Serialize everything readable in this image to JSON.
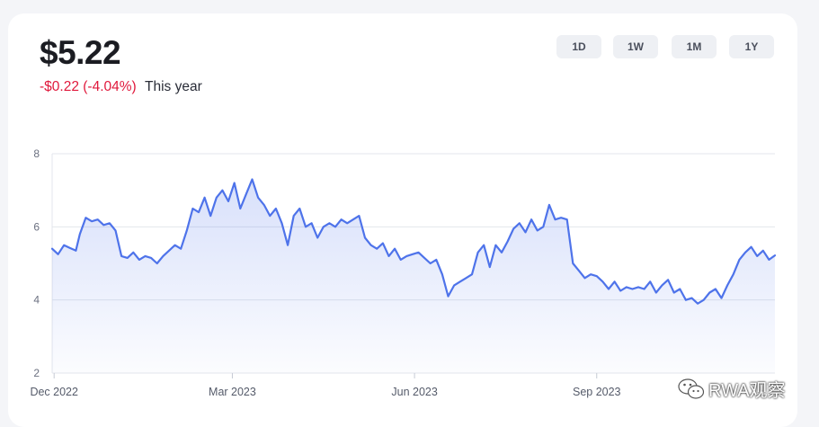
{
  "header": {
    "price": "$5.22",
    "change_amount": "-$0.22",
    "change_percent": "(-4.04%)",
    "period_label": "This year"
  },
  "range_tabs": [
    {
      "label": "1D",
      "active": false
    },
    {
      "label": "1W",
      "active": false
    },
    {
      "label": "1M",
      "active": false
    },
    {
      "label": "1Y",
      "active": true
    }
  ],
  "colors": {
    "line": "#4e73ea",
    "negative": "#e0193c",
    "active_tab": "#4e73ea",
    "grid": "#e3e6ec"
  },
  "watermark": {
    "text": "RWA观察",
    "icon": "wechat-icon"
  },
  "chart_data": {
    "type": "area",
    "title": "",
    "xlabel": "",
    "ylabel": "",
    "ylim": [
      2,
      8
    ],
    "y_ticks": [
      2,
      4,
      6,
      8
    ],
    "x_ticks": [
      "Dec 2022",
      "Mar 2023",
      "Jun 2023",
      "Sep 2023"
    ],
    "x_tick_dates": [
      "2022-12-01",
      "2023-03-01",
      "2023-06-01",
      "2023-09-01"
    ],
    "xlim": [
      "2022-11-30",
      "2023-11-30"
    ],
    "grid": true,
    "series": [
      {
        "x": [
          "2022-11-30",
          "2022-12-03",
          "2022-12-06",
          "2022-12-09",
          "2022-12-12",
          "2022-12-14",
          "2022-12-17",
          "2022-12-20",
          "2022-12-23",
          "2022-12-26",
          "2022-12-29",
          "2023-01-01",
          "2023-01-04",
          "2023-01-07",
          "2023-01-10",
          "2023-01-13",
          "2023-01-16",
          "2023-01-19",
          "2023-01-22",
          "2023-01-25",
          "2023-01-28",
          "2023-01-31",
          "2023-02-03",
          "2023-02-06",
          "2023-02-09",
          "2023-02-12",
          "2023-02-15",
          "2023-02-18",
          "2023-02-21",
          "2023-02-24",
          "2023-02-27",
          "2023-03-02",
          "2023-03-05",
          "2023-03-08",
          "2023-03-11",
          "2023-03-14",
          "2023-03-17",
          "2023-03-20",
          "2023-03-23",
          "2023-03-26",
          "2023-03-29",
          "2023-04-01",
          "2023-04-04",
          "2023-04-07",
          "2023-04-10",
          "2023-04-13",
          "2023-04-16",
          "2023-04-19",
          "2023-04-22",
          "2023-04-25",
          "2023-04-28",
          "2023-05-01",
          "2023-05-04",
          "2023-05-07",
          "2023-05-10",
          "2023-05-13",
          "2023-05-16",
          "2023-05-19",
          "2023-05-22",
          "2023-05-25",
          "2023-05-28",
          "2023-05-31",
          "2023-06-03",
          "2023-06-06",
          "2023-06-09",
          "2023-06-12",
          "2023-06-15",
          "2023-06-18",
          "2023-06-21",
          "2023-06-24",
          "2023-06-27",
          "2023-06-30",
          "2023-07-03",
          "2023-07-06",
          "2023-07-09",
          "2023-07-12",
          "2023-07-15",
          "2023-07-18",
          "2023-07-21",
          "2023-07-24",
          "2023-07-27",
          "2023-07-30",
          "2023-08-02",
          "2023-08-05",
          "2023-08-08",
          "2023-08-11",
          "2023-08-14",
          "2023-08-17",
          "2023-08-20",
          "2023-08-23",
          "2023-08-26",
          "2023-08-29",
          "2023-09-01",
          "2023-09-04",
          "2023-09-07",
          "2023-09-10",
          "2023-09-13",
          "2023-09-16",
          "2023-09-19",
          "2023-09-22",
          "2023-09-25",
          "2023-09-28",
          "2023-10-01",
          "2023-10-04",
          "2023-10-07",
          "2023-10-10",
          "2023-10-13",
          "2023-10-16",
          "2023-10-19",
          "2023-10-22",
          "2023-10-25",
          "2023-10-28",
          "2023-10-31",
          "2023-11-03",
          "2023-11-06",
          "2023-11-09",
          "2023-11-12",
          "2023-11-15",
          "2023-11-18",
          "2023-11-21",
          "2023-11-24",
          "2023-11-27",
          "2023-11-30"
        ],
        "values": [
          5.4,
          5.25,
          5.5,
          5.42,
          5.35,
          5.8,
          6.25,
          6.15,
          6.2,
          6.05,
          6.1,
          5.9,
          5.2,
          5.15,
          5.3,
          5.1,
          5.2,
          5.15,
          5.0,
          5.2,
          5.35,
          5.5,
          5.4,
          5.9,
          6.5,
          6.4,
          6.8,
          6.3,
          6.8,
          7.0,
          6.7,
          7.2,
          6.5,
          6.9,
          7.3,
          6.8,
          6.6,
          6.3,
          6.5,
          6.1,
          5.5,
          6.3,
          6.5,
          6.0,
          6.1,
          5.7,
          6.0,
          6.1,
          6.0,
          6.2,
          6.1,
          6.2,
          6.3,
          5.7,
          5.5,
          5.4,
          5.55,
          5.2,
          5.4,
          5.1,
          5.2,
          5.25,
          5.3,
          5.15,
          5.0,
          5.1,
          4.7,
          4.1,
          4.4,
          4.5,
          4.6,
          4.7,
          5.3,
          5.5,
          4.9,
          5.5,
          5.3,
          5.6,
          5.95,
          6.1,
          5.85,
          6.2,
          5.9,
          6.0,
          6.6,
          6.2,
          6.25,
          6.2,
          5.0,
          4.8,
          4.6,
          4.7,
          4.65,
          4.5,
          4.3,
          4.5,
          4.25,
          4.35,
          4.3,
          4.35,
          4.3,
          4.5,
          4.2,
          4.4,
          4.55,
          4.2,
          4.3,
          4.0,
          4.05,
          3.9,
          4.0,
          4.2,
          4.3,
          4.05,
          4.4,
          4.7,
          5.1,
          5.3,
          5.45,
          5.2,
          5.35,
          5.1,
          5.22
        ]
      }
    ]
  }
}
